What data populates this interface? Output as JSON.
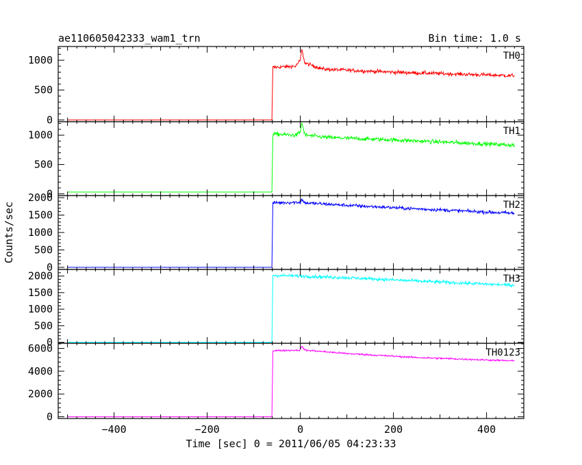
{
  "header": {
    "left_title": "ae110605042333_wam1_trn",
    "right_title": "Bin time: 1.0 s"
  },
  "chart_data": {
    "type": "line",
    "xlabel": "Time [sec] 0 = 2011/06/05 04:23:33",
    "ylabel": "Counts/sec",
    "xlim": [
      -520,
      480
    ],
    "xticks": [
      -400,
      -200,
      0,
      200,
      400
    ],
    "xtick_labels": [
      "−400",
      "−200",
      "0",
      "200",
      "400"
    ],
    "bin_time_s": 1.0,
    "panels": [
      {
        "label": "TH0",
        "color": "#ff0000",
        "ylim": [
          -30,
          1230
        ],
        "yticks": [
          0,
          500,
          1000
        ],
        "ytick_labels": [
          "0",
          "500",
          "1000"
        ],
        "profile": [
          [
            -500,
            0
          ],
          [
            -61,
            0
          ],
          [
            -59,
            880
          ],
          [
            -10,
            900
          ],
          [
            0,
            1000
          ],
          [
            3,
            1180
          ],
          [
            10,
            950
          ],
          [
            50,
            850
          ],
          [
            200,
            800
          ],
          [
            460,
            740
          ]
        ],
        "noise": 22
      },
      {
        "label": "TH1",
        "color": "#00ff00",
        "ylim": [
          -30,
          1230
        ],
        "yticks": [
          0,
          500,
          1000
        ],
        "ytick_labels": [
          "0",
          "500",
          "1000"
        ],
        "profile": [
          [
            -500,
            30
          ],
          [
            -61,
            30
          ],
          [
            -59,
            1020
          ],
          [
            -10,
            1000
          ],
          [
            0,
            1050
          ],
          [
            3,
            1220
          ],
          [
            10,
            1000
          ],
          [
            60,
            960
          ],
          [
            200,
            920
          ],
          [
            460,
            830
          ]
        ],
        "noise": 25
      },
      {
        "label": "TH2",
        "color": "#0000ff",
        "ylim": [
          -60,
          2060
        ],
        "yticks": [
          0,
          500,
          1000,
          1500,
          2000
        ],
        "ytick_labels": [
          "0",
          "500",
          "1000",
          "1500",
          "2000"
        ],
        "profile": [
          [
            -500,
            0
          ],
          [
            -61,
            0
          ],
          [
            -59,
            1850
          ],
          [
            0,
            1870
          ],
          [
            3,
            1950
          ],
          [
            10,
            1850
          ],
          [
            100,
            1780
          ],
          [
            250,
            1680
          ],
          [
            460,
            1550
          ]
        ],
        "noise": 35
      },
      {
        "label": "TH3",
        "color": "#00ffff",
        "ylim": [
          -30,
          2200
        ],
        "yticks": [
          0,
          500,
          1000,
          1500,
          2000
        ],
        "ytick_labels": [
          "0",
          "500",
          "1000",
          "1500",
          "2000"
        ],
        "profile": [
          [
            -500,
            0
          ],
          [
            -61,
            0
          ],
          [
            -59,
            2020
          ],
          [
            0,
            2000
          ],
          [
            100,
            1950
          ],
          [
            250,
            1850
          ],
          [
            460,
            1720
          ]
        ],
        "noise": 35
      },
      {
        "label": "TH0123",
        "color": "#ff00ff",
        "ylim": [
          -150,
          6450
        ],
        "yticks": [
          0,
          2000,
          4000,
          6000
        ],
        "ytick_labels": [
          "0",
          "2000",
          "4000",
          "6000"
        ],
        "profile": [
          [
            -500,
            0
          ],
          [
            -61,
            0
          ],
          [
            -59,
            5800
          ],
          [
            0,
            5850
          ],
          [
            3,
            6200
          ],
          [
            10,
            5850
          ],
          [
            100,
            5550
          ],
          [
            250,
            5200
          ],
          [
            460,
            4900
          ]
        ],
        "noise": 55
      }
    ]
  }
}
